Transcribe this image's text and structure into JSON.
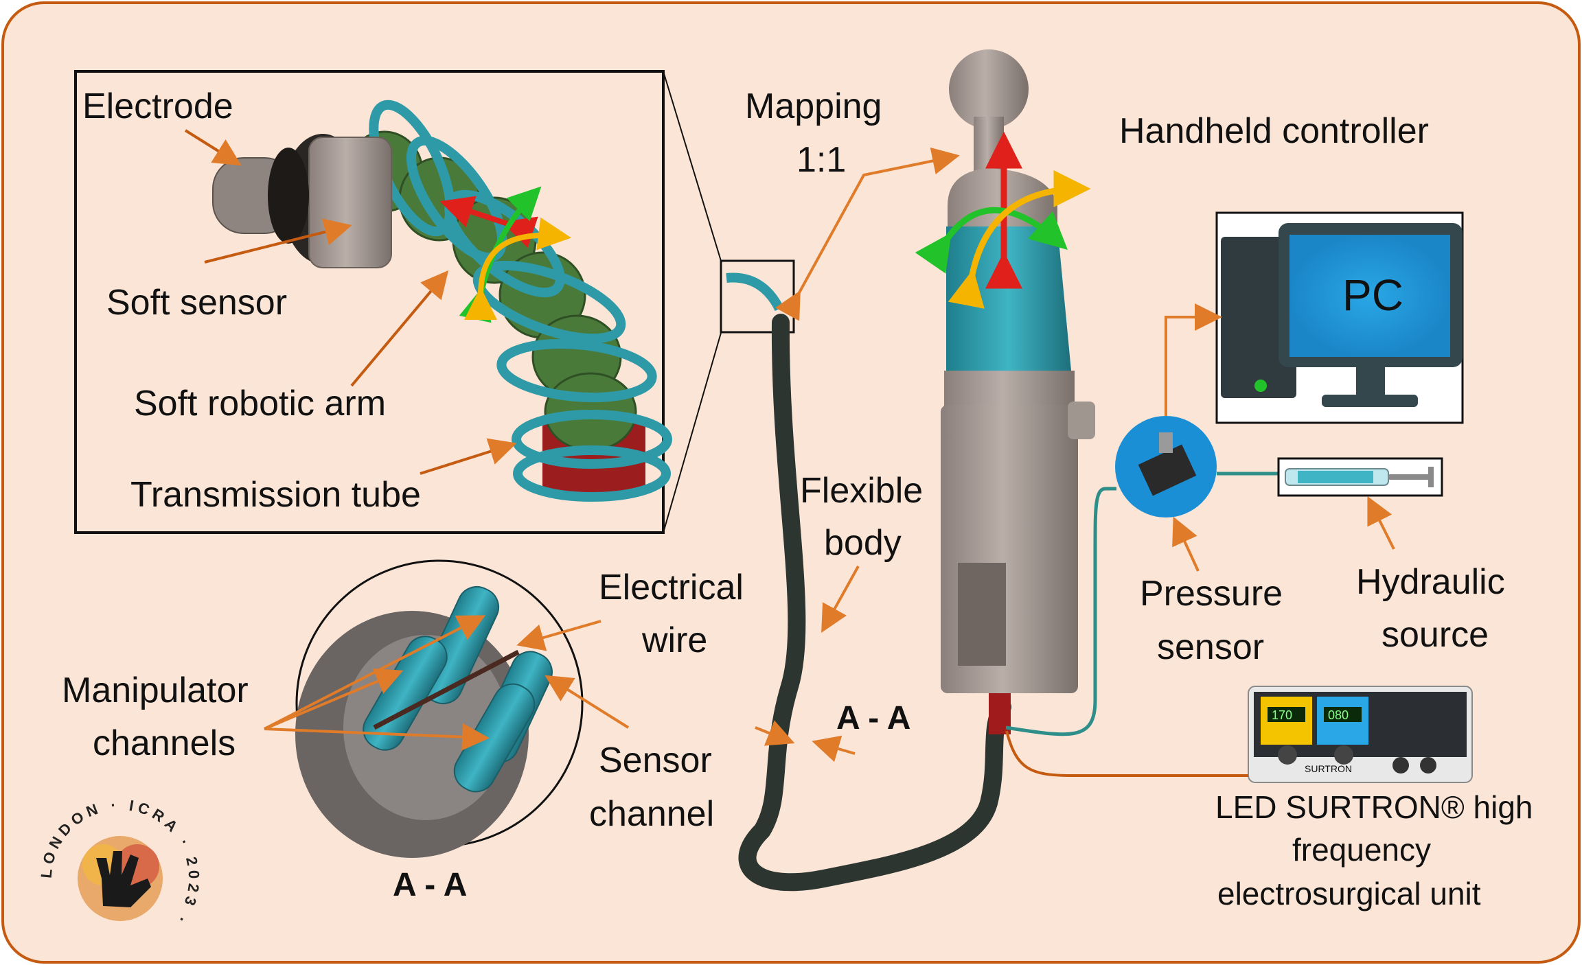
{
  "labels": {
    "electrode": "Electrode",
    "soft_sensor": "Soft sensor",
    "soft_robotic_arm": "Soft robotic arm",
    "transmission_tube": "Transmission tube",
    "mapping_1": "Mapping",
    "mapping_2": "1:1",
    "handheld_controller": "Handheld controller",
    "pc": "PC",
    "flexible_body_1": "Flexible",
    "flexible_body_2": "body",
    "electrical_wire_1": "Electrical",
    "electrical_wire_2": "wire",
    "manipulator_channels_1": "Manipulator",
    "manipulator_channels_2": "channels",
    "sensor_channel_1": "Sensor",
    "sensor_channel_2": "channel",
    "section_aa_main": "A - A",
    "section_aa_cable": "A - A",
    "pressure_sensor_1": "Pressure",
    "pressure_sensor_2": "sensor",
    "hydraulic_source_1": "Hydraulic",
    "hydraulic_source_2": "source",
    "led_unit_1": "LED SURTRON® high",
    "led_unit_2": "frequency",
    "led_unit_3": "electrosurgical unit"
  },
  "device": {
    "brand_text": "SURTRON",
    "display_left": "170",
    "display_right": "080"
  },
  "logo": {
    "ring_text": "LONDON · ICRA · 2023 ·"
  },
  "colors": {
    "background": "#fbe5d6",
    "border": "#c55a11",
    "arrow": "#e07b2a",
    "teal": "#2e9aa8",
    "dark_teal": "#1f6f7a",
    "red_arrow": "#e0201b",
    "green_arrow": "#22c22a",
    "yellow_arrow": "#f5b400",
    "pc_screen": "#1fa8e0"
  }
}
